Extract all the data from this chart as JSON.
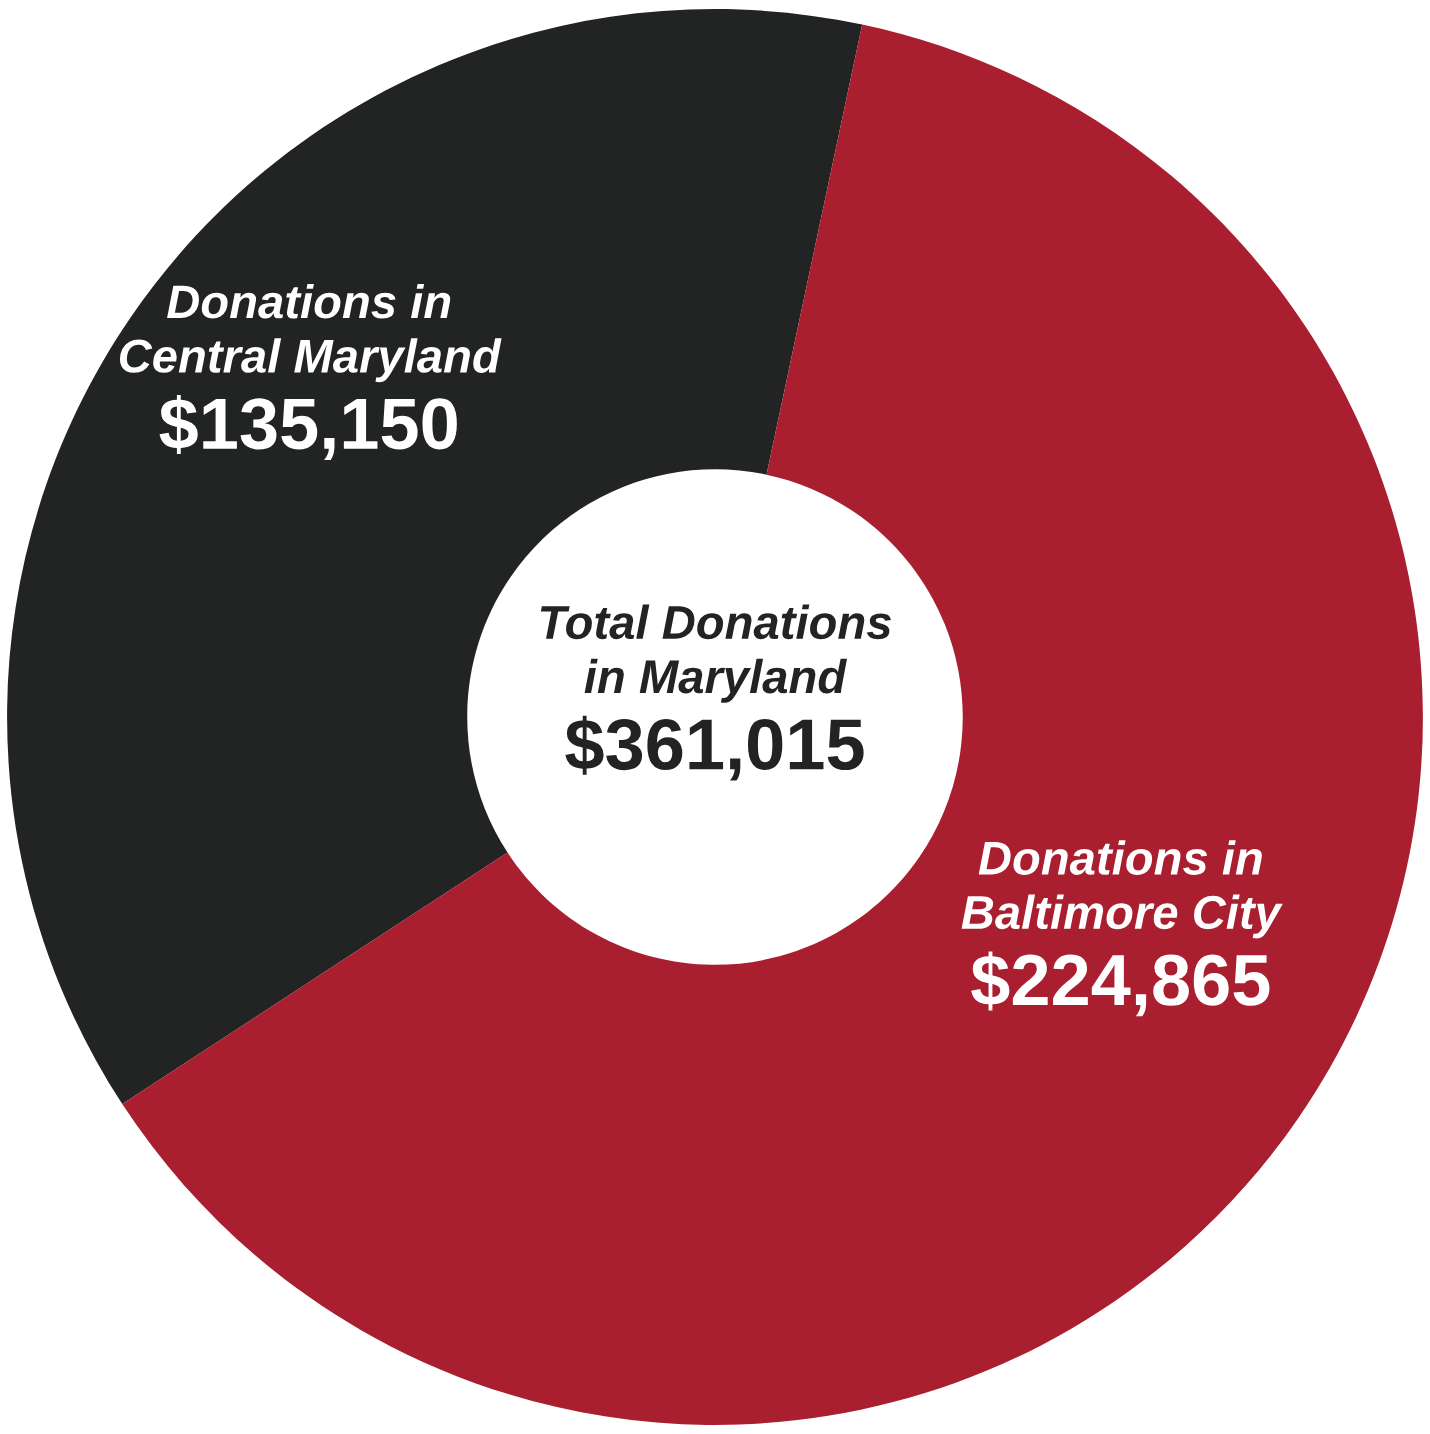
{
  "chart_data": {
    "type": "donut",
    "categories": [
      "Donations in\nCentral Maryland",
      "Donations in\nBaltimore City"
    ],
    "values": [
      135150,
      224865
    ],
    "value_labels": [
      "$135,150",
      "$224,865"
    ],
    "colors": [
      "#222323",
      "#a91f2f"
    ],
    "annotations": [
      "Total Donations\nin Maryland",
      "$361,015"
    ]
  }
}
